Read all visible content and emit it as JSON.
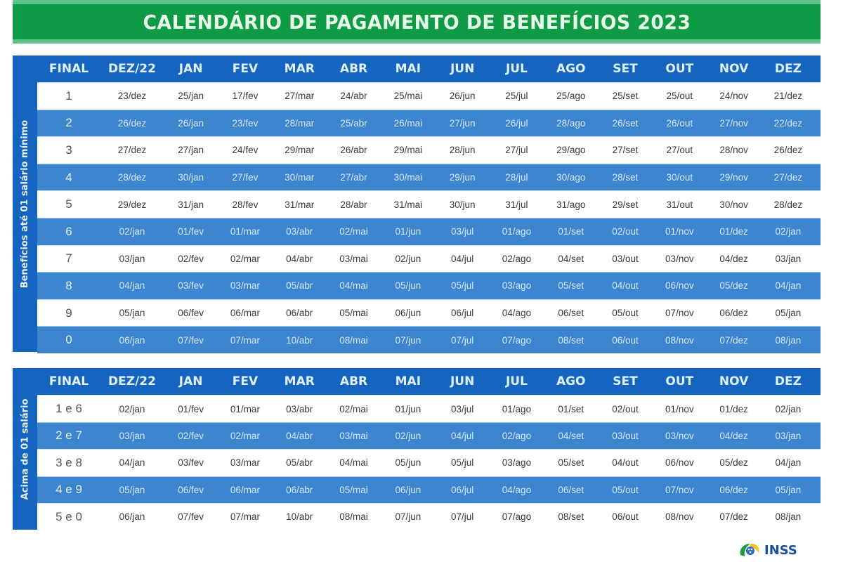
{
  "title": "CALENDÁRIO DE PAGAMENTO DE BENEFÍCIOS 2023",
  "columns": [
    "FINAL",
    "DEZ/22",
    "JAN",
    "FEV",
    "MAR",
    "ABR",
    "MAI",
    "JUN",
    "JUL",
    "AGO",
    "SET",
    "OUT",
    "NOV",
    "DEZ"
  ],
  "tables": [
    {
      "side_label": "Benefícios até 01 salário mínimo",
      "rows": [
        [
          "1",
          "23/dez",
          "25/jan",
          "17/fev",
          "27/mar",
          "24/abr",
          "25/mai",
          "26/jun",
          "25/jul",
          "25/ago",
          "25/set",
          "25/out",
          "24/nov",
          "21/dez"
        ],
        [
          "2",
          "26/dez",
          "26/jan",
          "23/fev",
          "28/mar",
          "25/abr",
          "26/mai",
          "27/jun",
          "26/jul",
          "28/ago",
          "26/set",
          "26/out",
          "27/nov",
          "22/dez"
        ],
        [
          "3",
          "27/dez",
          "27/jan",
          "24/fev",
          "29/mar",
          "26/abr",
          "29/mai",
          "28/jun",
          "27/jul",
          "29/ago",
          "27/set",
          "27/out",
          "28/nov",
          "26/dez"
        ],
        [
          "4",
          "28/dez",
          "30/jan",
          "27/fev",
          "30/mar",
          "27/abr",
          "30/mai",
          "29/jun",
          "28/jul",
          "30/ago",
          "28/set",
          "30/out",
          "29/nov",
          "27/dez"
        ],
        [
          "5",
          "29/dez",
          "31/jan",
          "28/fev",
          "31/mar",
          "28/abr",
          "31/mai",
          "30/jun",
          "31/jul",
          "31/ago",
          "29/set",
          "31/out",
          "30/nov",
          "28/dez"
        ],
        [
          "6",
          "02/jan",
          "01/fev",
          "01/mar",
          "03/abr",
          "02/mai",
          "01/jun",
          "03/jul",
          "01/ago",
          "01/set",
          "02/out",
          "01/nov",
          "01/dez",
          "02/jan"
        ],
        [
          "7",
          "03/jan",
          "02/fev",
          "02/mar",
          "04/abr",
          "03/mai",
          "02/jun",
          "04/jul",
          "02/ago",
          "04/set",
          "03/out",
          "03/nov",
          "04/dez",
          "03/jan"
        ],
        [
          "8",
          "04/jan",
          "03/fev",
          "03/mar",
          "05/abr",
          "04/mai",
          "05/jun",
          "05/jul",
          "03/ago",
          "05/set",
          "04/out",
          "06/nov",
          "05/dez",
          "04/jan"
        ],
        [
          "9",
          "05/jan",
          "06/fev",
          "06/mar",
          "06/abr",
          "05/mai",
          "06/jun",
          "06/jul",
          "04/ago",
          "06/set",
          "05/out",
          "07/nov",
          "06/dez",
          "05/jan"
        ],
        [
          "0",
          "06/jan",
          "07/fev",
          "07/mar",
          "10/abr",
          "08/mai",
          "07/jun",
          "07/jul",
          "07/ago",
          "08/set",
          "06/out",
          "08/nov",
          "07/dez",
          "08/jan"
        ]
      ]
    },
    {
      "side_label": "Acima de 01 salário",
      "rows": [
        [
          "1 e 6",
          "02/jan",
          "01/fev",
          "01/mar",
          "03/abr",
          "02/mai",
          "01/jun",
          "03/jul",
          "01/ago",
          "01/set",
          "02/out",
          "01/nov",
          "01/dez",
          "02/jan"
        ],
        [
          "2 e 7",
          "03/jan",
          "02/fev",
          "02/mar",
          "04/abr",
          "03/mai",
          "02/jun",
          "04/jul",
          "02/ago",
          "04/set",
          "03/out",
          "03/nov",
          "04/dez",
          "03/jan"
        ],
        [
          "3 e 8",
          "04/jan",
          "03/fev",
          "03/mar",
          "05/abr",
          "04/mai",
          "05/jun",
          "05/jul",
          "03/ago",
          "05/set",
          "04/out",
          "06/nov",
          "05/dez",
          "04/jan"
        ],
        [
          "4 e 9",
          "05/jan",
          "06/fev",
          "06/mar",
          "06/abr",
          "05/mai",
          "06/jun",
          "06/jul",
          "04/ago",
          "06/set",
          "05/out",
          "07/nov",
          "06/dez",
          "05/jan"
        ],
        [
          "5 e 0",
          "06/jan",
          "07/fev",
          "07/mar",
          "10/abr",
          "08/mai",
          "07/jun",
          "07/jul",
          "07/ago",
          "08/set",
          "06/out",
          "08/nov",
          "07/dez",
          "08/jan"
        ]
      ]
    }
  ],
  "logo": {
    "icon": "inss-logo-icon",
    "text": "INSS"
  },
  "colors": {
    "title_green": "#0f9a45",
    "header_blue": "#1565c0",
    "stripe_blue": "#3d85cf",
    "logo_blue": "#1a4fa0"
  }
}
